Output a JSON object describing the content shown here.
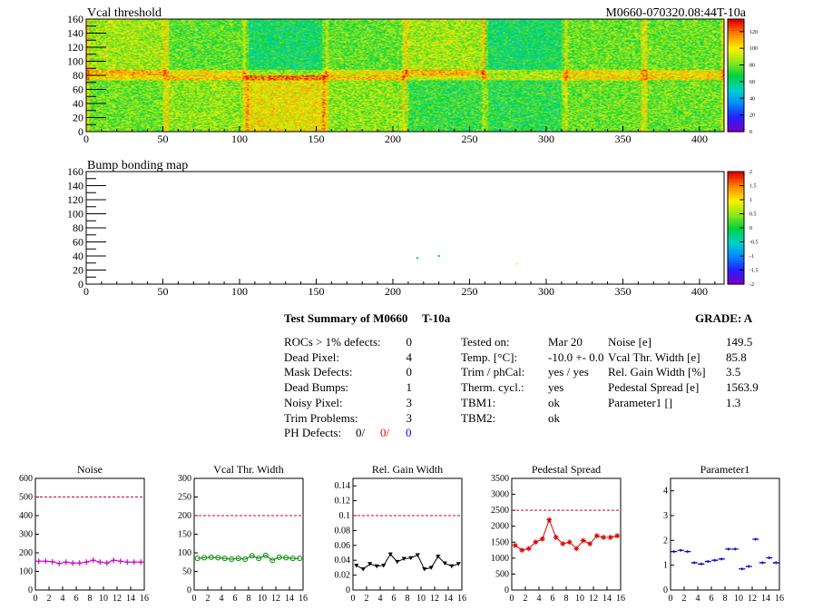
{
  "top_map": {
    "title": "Vcal threshold",
    "module_label": "M0660-070320.08:44T-10a",
    "x_ticks": [
      "0",
      "50",
      "100",
      "150",
      "200",
      "250",
      "300",
      "350",
      "400"
    ],
    "y_ticks": [
      "0",
      "20",
      "40",
      "60",
      "80",
      "100",
      "120",
      "140",
      "160"
    ],
    "palette_ticks": [
      "0",
      "20",
      "40",
      "60",
      "80",
      "100",
      "120"
    ]
  },
  "bump_map": {
    "title": "Bump bonding map",
    "x_ticks": [
      "0",
      "50",
      "100",
      "150",
      "200",
      "250",
      "300",
      "350",
      "400"
    ],
    "y_ticks": [
      "0",
      "20",
      "40",
      "60",
      "80",
      "100",
      "120",
      "140",
      "160"
    ],
    "palette_ticks": [
      "-2",
      "-1.5",
      "-1",
      "-0.5",
      "0",
      "0.5",
      "1",
      "1.5",
      "2"
    ]
  },
  "summary": {
    "title": "Test Summary of M0660",
    "temp_label": "T-10a",
    "grade_label": "GRADE:  A",
    "left_rows": [
      {
        "label": "ROCs > 1% defects:",
        "value": "0"
      },
      {
        "label": "Dead Pixel:",
        "value": "4"
      },
      {
        "label": "Mask Defects:",
        "value": "0"
      },
      {
        "label": "Dead Bumps:",
        "value": "1"
      },
      {
        "label": "Noisy Pixel:",
        "value": "3"
      },
      {
        "label": "Trim Problems:",
        "value": "3"
      }
    ],
    "ph_label": "PH Defects:",
    "ph_values": [
      "0/",
      "0/",
      "0"
    ],
    "ph_colors": [
      "#000000",
      "#ff0000",
      "#0000ff"
    ],
    "mid_rows": [
      {
        "label": "Tested on:",
        "value": "Mar 20"
      },
      {
        "label": "Temp. [°C]:",
        "value": "-10.0 +- 0.0"
      },
      {
        "label": "Trim / phCal:",
        "value": "yes / yes"
      },
      {
        "label": "Therm. cycl.:",
        "value": "yes"
      },
      {
        "label": "TBM1:",
        "value": "ok"
      },
      {
        "label": "TBM2:",
        "value": "ok"
      }
    ],
    "right_rows": [
      {
        "label": "Noise [e]",
        "value": "149.5"
      },
      {
        "label": "Vcal Thr. Width [e]",
        "value": "85.8"
      },
      {
        "label": "Rel. Gain Width [%]",
        "value": "3.5"
      },
      {
        "label": "Pedestal Spread [e]",
        "value": "1563.9"
      },
      {
        "label": "Parameter1 []",
        "value": "1.3"
      }
    ]
  },
  "chart_data": [
    {
      "type": "heatmap",
      "title": "Vcal threshold",
      "xlim": [
        0,
        416
      ],
      "ylim": [
        0,
        160
      ],
      "zlim": [
        0,
        135
      ],
      "roc_layout": {
        "cols": 8,
        "rows": 2,
        "roc_width": 52,
        "roc_height": 80
      },
      "roc_means": [
        [
          88,
          78,
          65,
          78,
          88,
          65,
          80,
          80
        ],
        [
          80,
          85,
          100,
          85,
          72,
          70,
          80,
          80
        ]
      ],
      "colorbar": true
    },
    {
      "type": "heatmap",
      "title": "Bump bonding map",
      "xlim": [
        0,
        416
      ],
      "ylim": [
        0,
        160
      ],
      "zlim": [
        -2,
        2
      ],
      "points": [
        {
          "x": 216,
          "y": 37,
          "z": 0
        },
        {
          "x": 230,
          "y": 40,
          "z": 0
        },
        {
          "x": 281,
          "y": 29,
          "z": 1
        }
      ],
      "colorbar": true
    },
    {
      "type": "line",
      "title": "Noise",
      "xlim": [
        0,
        16
      ],
      "ylim": [
        0,
        600
      ],
      "x_ticks": [
        0,
        2,
        4,
        6,
        8,
        10,
        12,
        14,
        16
      ],
      "y_ticks": [
        0,
        100,
        200,
        300,
        400,
        500,
        600
      ],
      "threshold": 500,
      "color": "#cc00cc",
      "marker": "cross",
      "values": [
        155,
        155,
        152,
        143,
        150,
        145,
        145,
        150,
        160,
        150,
        145,
        160,
        155,
        150,
        150,
        150
      ]
    },
    {
      "type": "line",
      "title": "Vcal Thr. Width",
      "xlim": [
        0,
        16
      ],
      "ylim": [
        0,
        300
      ],
      "x_ticks": [
        0,
        2,
        4,
        6,
        8,
        10,
        12,
        14,
        16
      ],
      "y_ticks": [
        0,
        50,
        100,
        150,
        200,
        250,
        300
      ],
      "threshold": 200,
      "color": "#008800",
      "marker": "circle",
      "values": [
        85,
        87,
        88,
        87,
        85,
        83,
        85,
        83,
        92,
        85,
        93,
        80,
        88,
        87,
        85,
        85
      ]
    },
    {
      "type": "line",
      "title": "Rel. Gain Width",
      "xlim": [
        0,
        16
      ],
      "ylim": [
        0,
        0.15
      ],
      "x_ticks": [
        0,
        2,
        4,
        6,
        8,
        10,
        12,
        14,
        16
      ],
      "y_ticks": [
        0,
        0.02,
        0.04,
        0.06,
        0.08,
        0.1,
        0.12,
        0.14
      ],
      "threshold": 0.1,
      "color": "#000000",
      "marker": "triangle",
      "values": [
        0.033,
        0.028,
        0.035,
        0.032,
        0.033,
        0.048,
        0.038,
        0.042,
        0.043,
        0.047,
        0.028,
        0.03,
        0.045,
        0.036,
        0.032,
        0.035
      ]
    },
    {
      "type": "line",
      "title": "Pedestal Spread",
      "xlim": [
        0,
        16
      ],
      "ylim": [
        0,
        3500
      ],
      "x_ticks": [
        0,
        2,
        4,
        6,
        8,
        10,
        12,
        14,
        16
      ],
      "y_ticks": [
        0,
        500,
        1000,
        1500,
        2000,
        2500,
        3000,
        3500
      ],
      "threshold": 2500,
      "color": "#dd0000",
      "marker": "star",
      "values": [
        1400,
        1250,
        1300,
        1500,
        1600,
        2200,
        1650,
        1450,
        1500,
        1300,
        1550,
        1450,
        1700,
        1650,
        1650,
        1700
      ]
    },
    {
      "type": "scatter",
      "title": "Parameter1",
      "xlim": [
        0,
        16
      ],
      "ylim": [
        0,
        4.5
      ],
      "x_ticks": [
        0,
        2,
        4,
        6,
        8,
        10,
        12,
        14,
        16
      ],
      "y_ticks": [
        0,
        1,
        2,
        3,
        4
      ],
      "color": "#0000cc",
      "marker": "hbar",
      "values": [
        1.55,
        1.6,
        1.55,
        1.1,
        1.05,
        1.15,
        1.2,
        1.25,
        1.65,
        1.65,
        0.85,
        0.95,
        2.05,
        1.1,
        1.3,
        1.1
      ]
    }
  ]
}
